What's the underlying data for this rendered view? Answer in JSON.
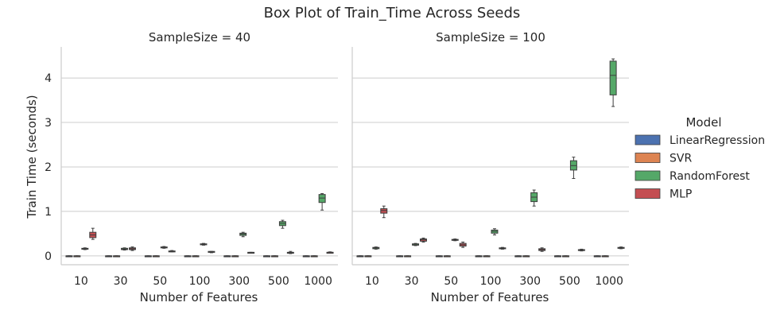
{
  "chart_data": {
    "type": "box",
    "title": "Box Plot of Train_Time Across Seeds",
    "xlabel": "Number of Features",
    "ylabel": "Train Time (seconds)",
    "categories": [
      "10",
      "30",
      "50",
      "100",
      "300",
      "500",
      "1000"
    ],
    "yticks": [
      0,
      1,
      2,
      3,
      4
    ],
    "ylim": [
      -0.2,
      4.7
    ],
    "grid": "horizontal",
    "legend": {
      "title": "Model",
      "position": "right",
      "entries": [
        {
          "name": "LinearRegression",
          "color": "#4c72b0"
        },
        {
          "name": "SVR",
          "color": "#dd8452"
        },
        {
          "name": "RandomForest",
          "color": "#55a868"
        },
        {
          "name": "MLP",
          "color": "#c44e52"
        }
      ]
    },
    "panels": [
      {
        "title": "SampleSize = 40",
        "boxes": [
          {
            "category": "10",
            "model": "LinearRegression",
            "min": 0,
            "q1": 0,
            "median": 0,
            "q3": 0,
            "max": 0
          },
          {
            "category": "10",
            "model": "SVR",
            "min": 0,
            "q1": 0,
            "median": 0,
            "q3": 0,
            "max": 0
          },
          {
            "category": "10",
            "model": "RandomForest",
            "min": 0.14,
            "q1": 0.15,
            "median": 0.16,
            "q3": 0.17,
            "max": 0.18
          },
          {
            "category": "10",
            "model": "MLP",
            "min": 0.37,
            "q1": 0.41,
            "median": 0.47,
            "q3": 0.53,
            "max": 0.62
          },
          {
            "category": "30",
            "model": "LinearRegression",
            "min": 0,
            "q1": 0,
            "median": 0,
            "q3": 0,
            "max": 0
          },
          {
            "category": "30",
            "model": "SVR",
            "min": 0,
            "q1": 0,
            "median": 0,
            "q3": 0,
            "max": 0
          },
          {
            "category": "30",
            "model": "RandomForest",
            "min": 0.13,
            "q1": 0.14,
            "median": 0.15,
            "q3": 0.17,
            "max": 0.18
          },
          {
            "category": "30",
            "model": "MLP",
            "min": 0.12,
            "q1": 0.14,
            "median": 0.16,
            "q3": 0.18,
            "max": 0.2
          },
          {
            "category": "50",
            "model": "LinearRegression",
            "min": 0,
            "q1": 0,
            "median": 0,
            "q3": 0,
            "max": 0
          },
          {
            "category": "50",
            "model": "SVR",
            "min": 0,
            "q1": 0,
            "median": 0,
            "q3": 0,
            "max": 0
          },
          {
            "category": "50",
            "model": "RandomForest",
            "min": 0.17,
            "q1": 0.18,
            "median": 0.19,
            "q3": 0.2,
            "max": 0.21
          },
          {
            "category": "50",
            "model": "MLP",
            "min": 0.09,
            "q1": 0.1,
            "median": 0.1,
            "q3": 0.11,
            "max": 0.12
          },
          {
            "category": "100",
            "model": "LinearRegression",
            "min": 0,
            "q1": 0,
            "median": 0,
            "q3": 0,
            "max": 0
          },
          {
            "category": "100",
            "model": "SVR",
            "min": 0,
            "q1": 0,
            "median": 0,
            "q3": 0,
            "max": 0
          },
          {
            "category": "100",
            "model": "RandomForest",
            "min": 0.24,
            "q1": 0.25,
            "median": 0.26,
            "q3": 0.27,
            "max": 0.28
          },
          {
            "category": "100",
            "model": "MLP",
            "min": 0.07,
            "q1": 0.08,
            "median": 0.09,
            "q3": 0.1,
            "max": 0.1
          },
          {
            "category": "300",
            "model": "LinearRegression",
            "min": 0,
            "q1": 0,
            "median": 0,
            "q3": 0,
            "max": 0
          },
          {
            "category": "300",
            "model": "SVR",
            "min": 0,
            "q1": 0,
            "median": 0,
            "q3": 0,
            "max": 0
          },
          {
            "category": "300",
            "model": "RandomForest",
            "min": 0.43,
            "q1": 0.46,
            "median": 0.49,
            "q3": 0.51,
            "max": 0.53
          },
          {
            "category": "300",
            "model": "MLP",
            "min": 0.06,
            "q1": 0.07,
            "median": 0.07,
            "q3": 0.08,
            "max": 0.08
          },
          {
            "category": "500",
            "model": "LinearRegression",
            "min": 0,
            "q1": 0,
            "median": 0,
            "q3": 0,
            "max": 0
          },
          {
            "category": "500",
            "model": "SVR",
            "min": 0,
            "q1": 0,
            "median": 0,
            "q3": 0,
            "max": 0
          },
          {
            "category": "500",
            "model": "RandomForest",
            "min": 0.62,
            "q1": 0.68,
            "median": 0.73,
            "q3": 0.77,
            "max": 0.8
          },
          {
            "category": "500",
            "model": "MLP",
            "min": 0.05,
            "q1": 0.06,
            "median": 0.07,
            "q3": 0.08,
            "max": 0.1
          },
          {
            "category": "1000",
            "model": "LinearRegression",
            "min": 0,
            "q1": 0,
            "median": 0,
            "q3": 0,
            "max": 0
          },
          {
            "category": "1000",
            "model": "SVR",
            "min": 0,
            "q1": 0,
            "median": 0,
            "q3": 0,
            "max": 0
          },
          {
            "category": "1000",
            "model": "RandomForest",
            "min": 1.03,
            "q1": 1.2,
            "median": 1.3,
            "q3": 1.38,
            "max": 1.4
          },
          {
            "category": "1000",
            "model": "MLP",
            "min": 0.06,
            "q1": 0.07,
            "median": 0.08,
            "q3": 0.08,
            "max": 0.09
          }
        ]
      },
      {
        "title": "SampleSize = 100",
        "boxes": [
          {
            "category": "10",
            "model": "LinearRegression",
            "min": 0,
            "q1": 0,
            "median": 0,
            "q3": 0,
            "max": 0
          },
          {
            "category": "10",
            "model": "SVR",
            "min": 0,
            "q1": 0,
            "median": 0,
            "q3": 0,
            "max": 0
          },
          {
            "category": "10",
            "model": "RandomForest",
            "min": 0.15,
            "q1": 0.16,
            "median": 0.18,
            "q3": 0.19,
            "max": 0.2
          },
          {
            "category": "10",
            "model": "MLP",
            "min": 0.86,
            "q1": 0.96,
            "median": 1.02,
            "q3": 1.06,
            "max": 1.12
          },
          {
            "category": "30",
            "model": "LinearRegression",
            "min": 0,
            "q1": 0,
            "median": 0,
            "q3": 0,
            "max": 0
          },
          {
            "category": "30",
            "model": "SVR",
            "min": 0,
            "q1": 0,
            "median": 0,
            "q3": 0,
            "max": 0
          },
          {
            "category": "30",
            "model": "RandomForest",
            "min": 0.23,
            "q1": 0.24,
            "median": 0.25,
            "q3": 0.27,
            "max": 0.28
          },
          {
            "category": "30",
            "model": "MLP",
            "min": 0.31,
            "q1": 0.33,
            "median": 0.36,
            "q3": 0.38,
            "max": 0.4
          },
          {
            "category": "50",
            "model": "LinearRegression",
            "min": 0,
            "q1": 0,
            "median": 0,
            "q3": 0,
            "max": 0
          },
          {
            "category": "50",
            "model": "SVR",
            "min": 0,
            "q1": 0,
            "median": 0,
            "q3": 0,
            "max": 0
          },
          {
            "category": "50",
            "model": "RandomForest",
            "min": 0.34,
            "q1": 0.35,
            "median": 0.36,
            "q3": 0.37,
            "max": 0.38
          },
          {
            "category": "50",
            "model": "MLP",
            "min": 0.19,
            "q1": 0.22,
            "median": 0.25,
            "q3": 0.28,
            "max": 0.31
          },
          {
            "category": "100",
            "model": "LinearRegression",
            "min": 0,
            "q1": 0,
            "median": 0,
            "q3": 0,
            "max": 0
          },
          {
            "category": "100",
            "model": "SVR",
            "min": 0,
            "q1": 0,
            "median": 0,
            "q3": 0,
            "max": 0
          },
          {
            "category": "100",
            "model": "RandomForest",
            "min": 0.47,
            "q1": 0.51,
            "median": 0.55,
            "q3": 0.58,
            "max": 0.61
          },
          {
            "category": "100",
            "model": "MLP",
            "min": 0.15,
            "q1": 0.16,
            "median": 0.17,
            "q3": 0.18,
            "max": 0.19
          },
          {
            "category": "300",
            "model": "LinearRegression",
            "min": 0,
            "q1": 0,
            "median": 0,
            "q3": 0,
            "max": 0
          },
          {
            "category": "300",
            "model": "SVR",
            "min": 0,
            "q1": 0,
            "median": 0,
            "q3": 0,
            "max": 0
          },
          {
            "category": "300",
            "model": "RandomForest",
            "min": 1.12,
            "q1": 1.22,
            "median": 1.32,
            "q3": 1.42,
            "max": 1.48
          },
          {
            "category": "300",
            "model": "MLP",
            "min": 0.1,
            "q1": 0.12,
            "median": 0.14,
            "q3": 0.16,
            "max": 0.18
          },
          {
            "category": "500",
            "model": "LinearRegression",
            "min": 0,
            "q1": 0,
            "median": 0,
            "q3": 0,
            "max": 0
          },
          {
            "category": "500",
            "model": "SVR",
            "min": 0,
            "q1": 0,
            "median": 0,
            "q3": 0,
            "max": 0
          },
          {
            "category": "500",
            "model": "RandomForest",
            "min": 1.74,
            "q1": 1.93,
            "median": 2.03,
            "q3": 2.14,
            "max": 2.22
          },
          {
            "category": "500",
            "model": "MLP",
            "min": 0.11,
            "q1": 0.12,
            "median": 0.13,
            "q3": 0.14,
            "max": 0.15
          },
          {
            "category": "1000",
            "model": "LinearRegression",
            "min": 0,
            "q1": 0,
            "median": 0,
            "q3": 0,
            "max": 0
          },
          {
            "category": "1000",
            "model": "SVR",
            "min": 0,
            "q1": 0,
            "median": 0,
            "q3": 0,
            "max": 0
          },
          {
            "category": "1000",
            "model": "RandomForest",
            "min": 3.36,
            "q1": 3.62,
            "median": 4.06,
            "q3": 4.38,
            "max": 4.43
          },
          {
            "category": "1000",
            "model": "MLP",
            "min": 0.16,
            "q1": 0.17,
            "median": 0.18,
            "q3": 0.19,
            "max": 0.2
          }
        ]
      }
    ]
  }
}
